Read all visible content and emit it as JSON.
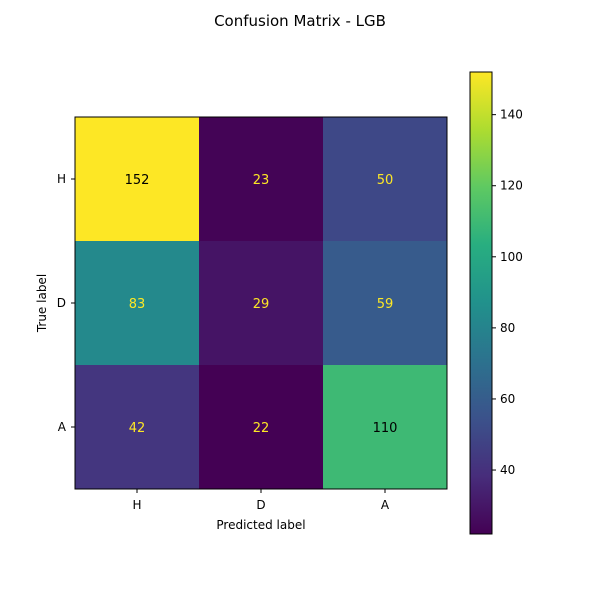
{
  "chart_data": {
    "type": "heatmap",
    "title": "Confusion Matrix - LGB",
    "xlabel": "Predicted label",
    "ylabel": "True label",
    "x_categories": [
      "H",
      "D",
      "A"
    ],
    "y_categories": [
      "H",
      "D",
      "A"
    ],
    "values": [
      [
        152,
        23,
        50
      ],
      [
        83,
        29,
        59
      ],
      [
        42,
        22,
        110
      ]
    ],
    "colormap": "viridis",
    "colorbar": {
      "range": [
        22,
        152
      ],
      "ticks": [
        40,
        60,
        80,
        100,
        120,
        140
      ]
    },
    "text_colors": {
      "on_dark": "#fde725",
      "on_light": "#000000"
    }
  }
}
